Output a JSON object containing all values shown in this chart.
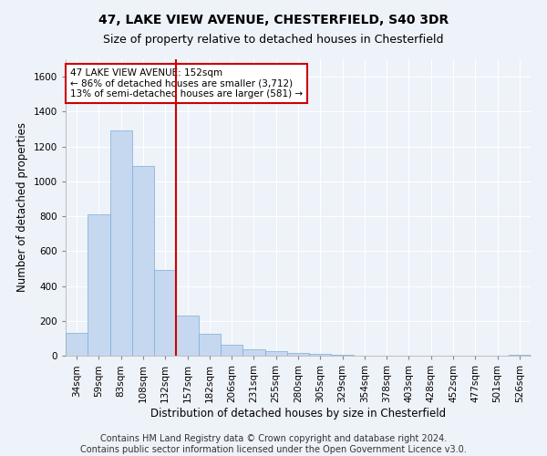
{
  "title1": "47, LAKE VIEW AVENUE, CHESTERFIELD, S40 3DR",
  "title2": "Size of property relative to detached houses in Chesterfield",
  "xlabel": "Distribution of detached houses by size in Chesterfield",
  "ylabel": "Number of detached properties",
  "categories": [
    "34sqm",
    "59sqm",
    "83sqm",
    "108sqm",
    "132sqm",
    "157sqm",
    "182sqm",
    "206sqm",
    "231sqm",
    "255sqm",
    "280sqm",
    "305sqm",
    "329sqm",
    "354sqm",
    "378sqm",
    "403sqm",
    "428sqm",
    "452sqm",
    "477sqm",
    "501sqm",
    "526sqm"
  ],
  "values": [
    130,
    810,
    1290,
    1090,
    490,
    230,
    125,
    65,
    35,
    25,
    15,
    10,
    5,
    0,
    0,
    0,
    0,
    0,
    0,
    0,
    5
  ],
  "bar_color": "#c5d8f0",
  "bar_edge_color": "#7aaed6",
  "vline_x": 4.5,
  "vline_color": "#cc0000",
  "annotation_text": "47 LAKE VIEW AVENUE: 152sqm\n← 86% of detached houses are smaller (3,712)\n13% of semi-detached houses are larger (581) →",
  "annotation_box_color": "#ffffff",
  "annotation_box_edge": "#cc0000",
  "ylim": [
    0,
    1700
  ],
  "yticks": [
    0,
    200,
    400,
    600,
    800,
    1000,
    1200,
    1400,
    1600
  ],
  "footer1": "Contains HM Land Registry data © Crown copyright and database right 2024.",
  "footer2": "Contains public sector information licensed under the Open Government Licence v3.0.",
  "background_color": "#eef2f9",
  "plot_bg_color": "#eef2f9",
  "grid_color": "#ffffff",
  "title1_fontsize": 10,
  "title2_fontsize": 9,
  "axis_label_fontsize": 8.5,
  "tick_fontsize": 7.5,
  "footer_fontsize": 7,
  "annot_fontsize": 7.5
}
